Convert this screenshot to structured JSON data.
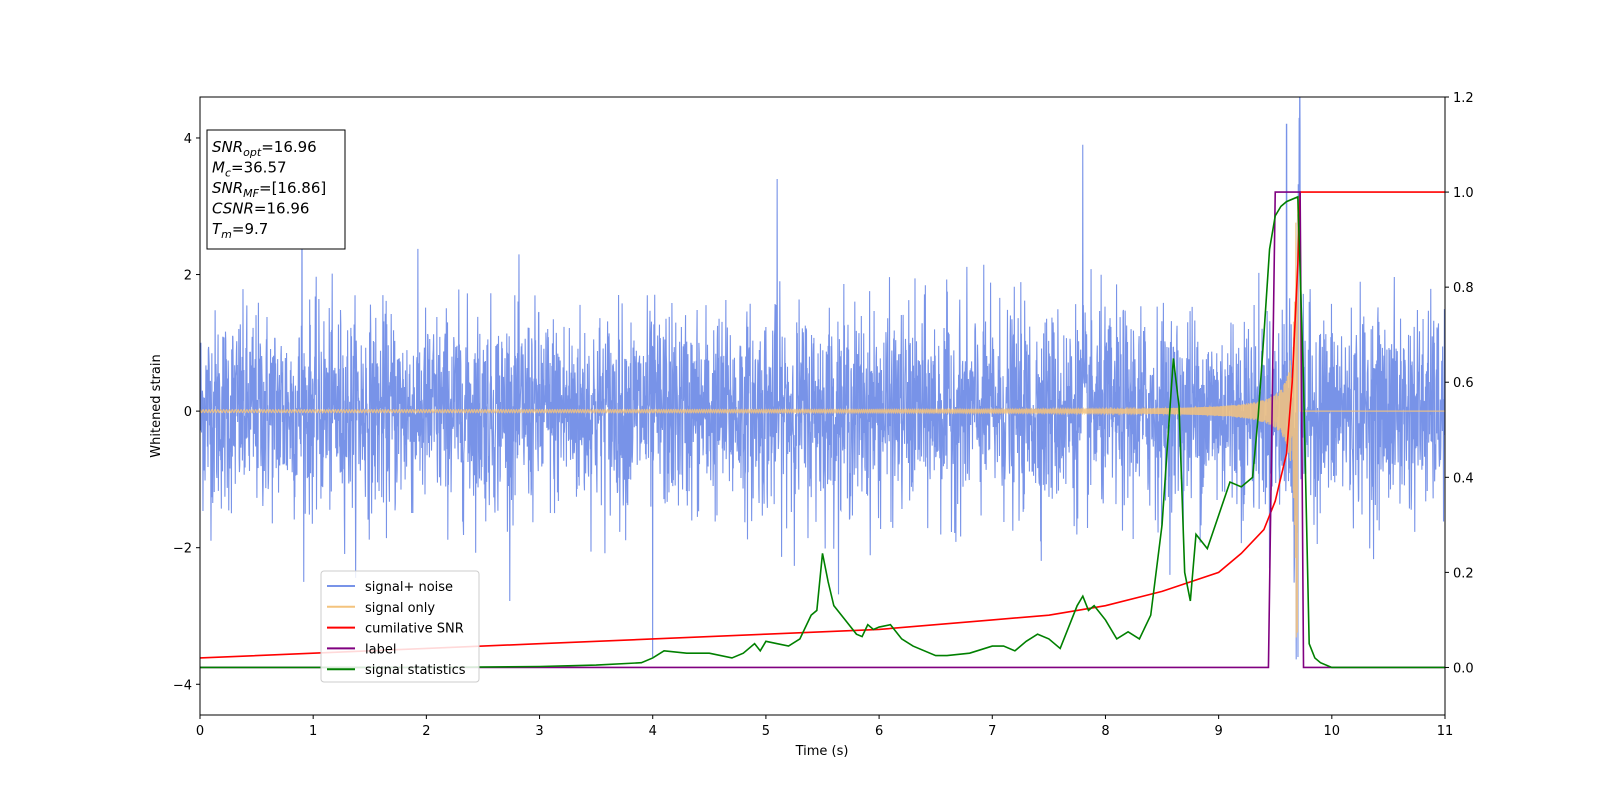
{
  "chart_data": {
    "type": "line",
    "xlabel": "Time (s)",
    "ylabel": "Whitened strain",
    "xlim": [
      0,
      11
    ],
    "ylim": [
      -4.45,
      4.6
    ],
    "y2lim": [
      -0.1,
      1.2
    ],
    "x_ticks": [
      0,
      1,
      2,
      3,
      4,
      5,
      6,
      7,
      8,
      9,
      10,
      11
    ],
    "y_ticks": [
      -4,
      -2,
      0,
      2,
      4
    ],
    "y2_ticks": [
      "0.0",
      "0.2",
      "0.4",
      "0.6",
      "0.8",
      "1.0",
      "1.2"
    ],
    "grid": false,
    "legend_position": "lower-left",
    "annotation": [
      {
        "base": "SNR",
        "sub": "opt",
        "rest": "=16.96"
      },
      {
        "base": "M",
        "sub": "c",
        "rest": "=36.57"
      },
      {
        "base": "SNR",
        "sub": "MF",
        "rest": "=[16.86]"
      },
      {
        "base": "CSNR",
        "sub": "",
        "rest": "=16.96"
      },
      {
        "base": "T",
        "sub": "m",
        "rest": "=9.7"
      }
    ],
    "series": [
      {
        "name": "signal+ noise",
        "axis": "left",
        "color": "#7893e8",
        "description_values": {
          "amplitude_typical": 1.5,
          "amplitude_peak": 4.2,
          "notable_spikes": [
            [
              0.9,
              3.3
            ],
            [
              5.1,
              3.4
            ],
            [
              7.8,
              3.9
            ],
            [
              9.6,
              4.2
            ],
            [
              9.72,
              4.15
            ],
            [
              4.0,
              -3.6
            ],
            [
              9.7,
              -3.6
            ]
          ]
        }
      },
      {
        "name": "signal only",
        "axis": "left",
        "color": "#f4c37d",
        "description_values": {
          "merger_time": 9.7,
          "peak_amplitude": 3.4,
          "start_amplitude": 0.02
        }
      },
      {
        "name": "cumilative SNR",
        "axis": "right",
        "color": "#ff0000",
        "x": [
          0,
          1,
          2,
          3,
          4,
          5,
          6,
          7,
          7.5,
          8,
          8.5,
          9,
          9.2,
          9.4,
          9.5,
          9.6,
          9.65,
          9.7,
          9.72,
          11
        ],
        "y": [
          0.02,
          0.03,
          0.04,
          0.05,
          0.06,
          0.07,
          0.08,
          0.1,
          0.11,
          0.13,
          0.16,
          0.2,
          0.24,
          0.29,
          0.35,
          0.45,
          0.6,
          0.85,
          1.0,
          1.0
        ]
      },
      {
        "name": "label",
        "axis": "right",
        "color": "#800080",
        "x": [
          0,
          9.44,
          9.5,
          9.72,
          9.75,
          11
        ],
        "y": [
          0,
          0,
          1,
          1,
          0,
          0
        ]
      },
      {
        "name": "signal statistics",
        "axis": "right",
        "color": "#008000",
        "x": [
          0,
          0.5,
          1,
          2,
          3,
          3.5,
          3.9,
          4.0,
          4.1,
          4.3,
          4.5,
          4.7,
          4.8,
          4.9,
          4.95,
          5.0,
          5.1,
          5.2,
          5.3,
          5.4,
          5.45,
          5.5,
          5.55,
          5.6,
          5.7,
          5.8,
          5.85,
          5.9,
          5.95,
          6.0,
          6.1,
          6.2,
          6.3,
          6.5,
          6.6,
          6.8,
          7.0,
          7.1,
          7.2,
          7.3,
          7.4,
          7.5,
          7.6,
          7.7,
          7.75,
          7.8,
          7.85,
          7.9,
          8.0,
          8.1,
          8.2,
          8.3,
          8.4,
          8.5,
          8.6,
          8.65,
          8.7,
          8.75,
          8.8,
          8.9,
          9.0,
          9.1,
          9.2,
          9.3,
          9.35,
          9.4,
          9.45,
          9.5,
          9.55,
          9.6,
          9.7,
          9.75,
          9.8,
          9.85,
          9.9,
          10,
          11
        ],
        "y": [
          0,
          0,
          0,
          0,
          0.002,
          0.005,
          0.01,
          0.02,
          0.035,
          0.03,
          0.03,
          0.02,
          0.03,
          0.05,
          0.035,
          0.055,
          0.05,
          0.045,
          0.06,
          0.11,
          0.12,
          0.24,
          0.18,
          0.13,
          0.1,
          0.07,
          0.065,
          0.09,
          0.08,
          0.085,
          0.09,
          0.06,
          0.045,
          0.025,
          0.025,
          0.03,
          0.045,
          0.045,
          0.035,
          0.055,
          0.07,
          0.06,
          0.04,
          0.1,
          0.13,
          0.15,
          0.12,
          0.13,
          0.1,
          0.06,
          0.075,
          0.06,
          0.11,
          0.3,
          0.65,
          0.55,
          0.2,
          0.14,
          0.28,
          0.25,
          0.32,
          0.39,
          0.38,
          0.4,
          0.53,
          0.7,
          0.88,
          0.95,
          0.97,
          0.98,
          0.99,
          0.6,
          0.05,
          0.02,
          0.01,
          0.0,
          0.0
        ]
      }
    ]
  }
}
